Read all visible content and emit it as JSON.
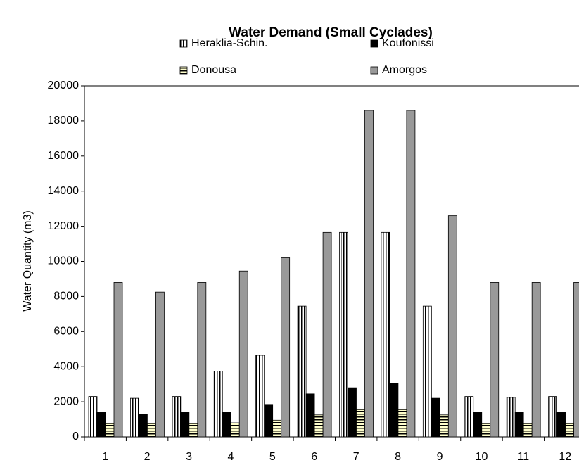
{
  "chart_data": {
    "type": "bar",
    "title": "Water Demand (Small Cyclades)",
    "ylabel": "Water Quantity (m3)",
    "categories": [
      "1",
      "2",
      "3",
      "4",
      "5",
      "6",
      "7",
      "8",
      "9",
      "10",
      "11",
      "12"
    ],
    "series": [
      {
        "name": "Heraklia-Schin.",
        "color": "#ffffff",
        "pattern": "vertical",
        "values": [
          2300,
          2200,
          2300,
          3750,
          4650,
          7450,
          11650,
          11650,
          7450,
          2300,
          2250,
          2300
        ]
      },
      {
        "name": "Koufonissi",
        "color": "#000000",
        "pattern": "solid",
        "values": [
          1400,
          1300,
          1400,
          1400,
          1850,
          2450,
          2800,
          3050,
          2200,
          1400,
          1400,
          1400
        ]
      },
      {
        "name": "Donousa",
        "color": "#ffffcc",
        "pattern": "horizontal",
        "values": [
          750,
          750,
          750,
          800,
          950,
          1250,
          1550,
          1550,
          1250,
          750,
          750,
          750
        ]
      },
      {
        "name": "Amorgos",
        "color": "#999999",
        "pattern": "solid",
        "values": [
          8800,
          8250,
          8800,
          9450,
          10200,
          11650,
          18600,
          18600,
          12600,
          8800,
          8800,
          8800
        ]
      }
    ],
    "ylim": [
      0,
      20000
    ],
    "yticks": [
      0,
      2000,
      4000,
      6000,
      8000,
      10000,
      12000,
      14000,
      16000,
      18000,
      20000
    ],
    "grid": false
  }
}
